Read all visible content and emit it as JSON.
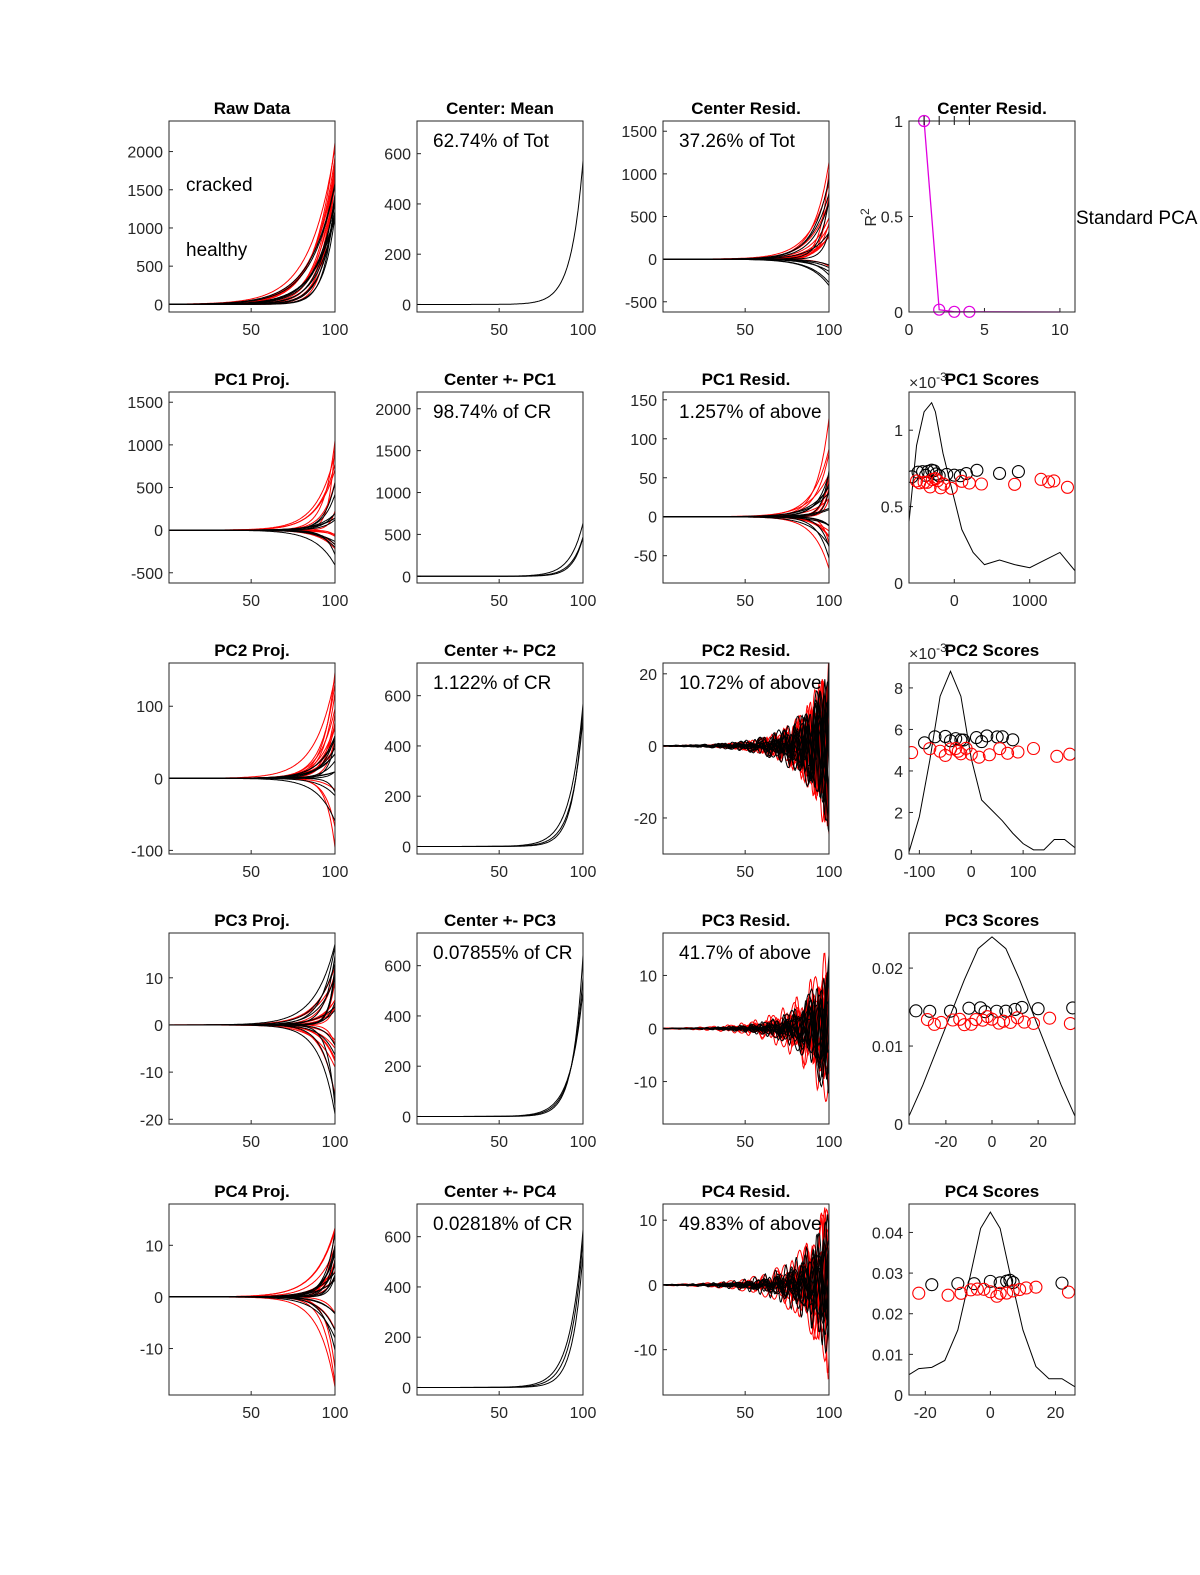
{
  "figure": {
    "side_label": "Standard PCA",
    "legend": [
      {
        "label": "cracked",
        "color": "#ff0000"
      },
      {
        "label": "healthy",
        "color": "#000000"
      }
    ]
  },
  "colors": {
    "cracked": "#ff0000",
    "healthy": "#000000",
    "r2_line": "#e000e0",
    "axis": "#262626"
  },
  "chart_data": [
    {
      "type": "line",
      "title": "Raw Data",
      "xlim": [
        1,
        100
      ],
      "ylim": [
        -100,
        2400
      ],
      "xticks": [
        50,
        100
      ],
      "yticks": [
        0,
        500,
        1000,
        1500,
        2000
      ],
      "series": [
        {
          "group": "cracked",
          "shape": "exp",
          "values": [
            0,
            2200
          ],
          "count": 12
        },
        {
          "group": "healthy",
          "shape": "exp",
          "values": [
            0,
            1600
          ],
          "count": 12
        }
      ]
    },
    {
      "type": "line",
      "title": "Center: Mean",
      "annotation": "62.74% of Tot",
      "xlim": [
        1,
        100
      ],
      "ylim": [
        -30,
        730
      ],
      "xticks": [
        50,
        100
      ],
      "yticks": [
        0,
        200,
        400,
        600
      ],
      "series": [
        {
          "group": "healthy",
          "shape": "exp",
          "values": [
            0,
            650
          ],
          "count": 1
        }
      ]
    },
    {
      "type": "line",
      "title": "Center Resid.",
      "annotation": "37.26% of Tot",
      "xlim": [
        1,
        100
      ],
      "ylim": [
        -620,
        1620
      ],
      "xticks": [
        50,
        100
      ],
      "yticks": [
        -500,
        0,
        500,
        1000,
        1500
      ],
      "series": [
        {
          "group": "cracked",
          "shape": "spread",
          "values": [
            -400,
            1500
          ],
          "count": 12
        },
        {
          "group": "healthy",
          "shape": "spread",
          "values": [
            -450,
            1000
          ],
          "count": 12
        }
      ]
    },
    {
      "type": "line",
      "title": "Center Resid.",
      "ylabel": "R2",
      "xlim": [
        0,
        11
      ],
      "ylim": [
        0,
        1
      ],
      "xticks": [
        0,
        5,
        10
      ],
      "yticks": [
        0,
        0.5,
        1
      ],
      "r2_x": [
        1,
        2,
        3,
        4
      ],
      "r2_y": [
        1.0,
        0.012,
        0.0011,
        0.0009
      ],
      "r2_end": [
        10,
        0.0
      ],
      "top_marks": [
        1,
        2,
        3,
        4
      ]
    },
    {
      "type": "line",
      "title": "PC1 Proj.",
      "xlim": [
        1,
        100
      ],
      "ylim": [
        -620,
        1620
      ],
      "xticks": [
        50,
        100
      ],
      "yticks": [
        -500,
        0,
        500,
        1000,
        1500
      ],
      "series": [
        {
          "group": "cracked",
          "shape": "spread",
          "values": [
            -300,
            1500
          ],
          "count": 12
        },
        {
          "group": "healthy",
          "shape": "spread",
          "values": [
            -550,
            600
          ],
          "count": 12
        }
      ]
    },
    {
      "type": "line",
      "title": "Center +- PC1",
      "annotation": "98.74% of CR",
      "xlim": [
        1,
        100
      ],
      "ylim": [
        -80,
        2200
      ],
      "xticks": [
        50,
        100
      ],
      "yticks": [
        0,
        500,
        1000,
        1500,
        2000
      ],
      "series": [
        {
          "group": "healthy",
          "shape": "exp",
          "values": [
            0,
            650
          ],
          "count": 3
        }
      ]
    },
    {
      "type": "line",
      "title": "PC1 Resid.",
      "annotation": "1.257% of above",
      "xlim": [
        1,
        100
      ],
      "ylim": [
        -85,
        160
      ],
      "xticks": [
        50,
        100
      ],
      "yticks": [
        -50,
        0,
        50,
        100,
        150
      ],
      "series": [
        {
          "group": "cracked",
          "shape": "spread",
          "values": [
            -80,
            150
          ],
          "count": 14
        },
        {
          "group": "healthy",
          "shape": "spread",
          "values": [
            -60,
            60
          ],
          "count": 14
        }
      ]
    },
    {
      "type": "scatter",
      "title": "PC1 Scores",
      "multiplier": "×10^-3",
      "xlim": [
        -600,
        1600
      ],
      "ylim": [
        0,
        1.25
      ],
      "xticks": [
        0,
        1000
      ],
      "yticks": [
        0,
        0.5,
        1
      ],
      "healthy_x": [
        -560,
        -480,
        -420,
        -380,
        -350,
        -300,
        -270,
        -240,
        -200,
        -100,
        0,
        80,
        160,
        300,
        600,
        850
      ],
      "cracked_x": [
        -500,
        -460,
        -400,
        -360,
        -320,
        -290,
        -250,
        -220,
        -180,
        -140,
        -40,
        100,
        200,
        360,
        800,
        1150,
        1250,
        1320,
        1500
      ],
      "healthy_y": 0.72,
      "cracked_y": 0.65,
      "density_x": [
        -600,
        -500,
        -400,
        -300,
        -250,
        -150,
        0,
        100,
        250,
        400,
        600,
        800,
        1000,
        1200,
        1400,
        1600
      ],
      "density_y": [
        0.4,
        0.9,
        1.12,
        1.18,
        1.12,
        0.85,
        0.55,
        0.35,
        0.2,
        0.12,
        0.15,
        0.12,
        0.1,
        0.15,
        0.2,
        0.08
      ]
    },
    {
      "type": "line",
      "title": "PC2 Proj.",
      "xlim": [
        1,
        100
      ],
      "ylim": [
        -105,
        160
      ],
      "xticks": [
        50,
        100
      ],
      "yticks": [
        -100,
        0,
        100
      ],
      "series": [
        {
          "group": "cracked",
          "shape": "spread",
          "values": [
            -100,
            150
          ],
          "count": 14
        },
        {
          "group": "healthy",
          "shape": "spread",
          "values": [
            -60,
            60
          ],
          "count": 14
        }
      ]
    },
    {
      "type": "line",
      "title": "Center +- PC2",
      "annotation": "1.122% of CR",
      "xlim": [
        1,
        100
      ],
      "ylim": [
        -30,
        730
      ],
      "xticks": [
        50,
        100
      ],
      "yticks": [
        0,
        200,
        400,
        600
      ],
      "series": [
        {
          "group": "healthy",
          "shape": "exp",
          "values": [
            0,
            650
          ],
          "count": 3
        }
      ]
    },
    {
      "type": "line",
      "title": "PC2 Resid.",
      "annotation": "10.72% of above",
      "xlim": [
        1,
        100
      ],
      "ylim": [
        -30,
        23
      ],
      "xticks": [
        50,
        100
      ],
      "yticks": [
        -20,
        0,
        20
      ],
      "series": [
        {
          "group": "cracked",
          "shape": "noisy",
          "values": [
            -28,
            22
          ],
          "count": 16
        },
        {
          "group": "healthy",
          "shape": "noisy",
          "values": [
            -25,
            18
          ],
          "count": 16
        }
      ]
    },
    {
      "type": "scatter",
      "title": "PC2 Scores",
      "multiplier": "×10^-3",
      "xlim": [
        -120,
        200
      ],
      "ylim": [
        0,
        9.2
      ],
      "xticks": [
        -100,
        0,
        100
      ],
      "yticks": [
        0,
        2,
        4,
        6,
        8
      ],
      "healthy_x": [
        -90,
        -70,
        -50,
        -40,
        -30,
        -20,
        -15,
        10,
        20,
        30,
        50,
        60,
        80
      ],
      "cracked_x": [
        -115,
        -80,
        -60,
        -50,
        -40,
        -30,
        -25,
        -20,
        -10,
        0,
        15,
        35,
        55,
        70,
        90,
        120,
        165,
        190
      ],
      "healthy_y": 5.5,
      "cracked_y": 4.9,
      "density_x": [
        -120,
        -100,
        -80,
        -60,
        -40,
        -20,
        0,
        20,
        40,
        60,
        80,
        100,
        120,
        140,
        160,
        180,
        200
      ],
      "density_y": [
        0.1,
        1.8,
        4.5,
        7.6,
        8.8,
        7.6,
        4.6,
        2.6,
        2.1,
        1.6,
        1.0,
        0.5,
        0.2,
        0.2,
        0.7,
        0.7,
        0.3
      ]
    },
    {
      "type": "line",
      "title": "PC3 Proj.",
      "xlim": [
        1,
        100
      ],
      "ylim": [
        -21,
        19.5
      ],
      "xticks": [
        50,
        100
      ],
      "yticks": [
        -20,
        -10,
        0,
        10
      ],
      "series": [
        {
          "group": "cracked",
          "shape": "spread",
          "values": [
            -19,
            16
          ],
          "count": 16
        },
        {
          "group": "healthy",
          "shape": "spread",
          "values": [
            -20,
            18
          ],
          "count": 16
        }
      ]
    },
    {
      "type": "line",
      "title": "Center +- PC3",
      "annotation": "0.07855% of CR",
      "xlim": [
        1,
        100
      ],
      "ylim": [
        -30,
        730
      ],
      "xticks": [
        50,
        100
      ],
      "yticks": [
        0,
        200,
        400,
        600
      ],
      "series": [
        {
          "group": "healthy",
          "shape": "exp",
          "values": [
            0,
            650
          ],
          "count": 3
        }
      ]
    },
    {
      "type": "line",
      "title": "PC3 Resid.",
      "annotation": "41.7% of above",
      "xlim": [
        1,
        100
      ],
      "ylim": [
        -18,
        18
      ],
      "xticks": [
        50,
        100
      ],
      "yticks": [
        -10,
        0,
        10
      ],
      "series": [
        {
          "group": "cracked",
          "shape": "noisy",
          "values": [
            -16,
            17
          ],
          "count": 16
        },
        {
          "group": "healthy",
          "shape": "noisy",
          "values": [
            -13,
            15
          ],
          "count": 16
        }
      ]
    },
    {
      "type": "scatter",
      "title": "PC3 Scores",
      "xlim": [
        -36,
        36
      ],
      "ylim": [
        0,
        0.0245
      ],
      "xticks": [
        -20,
        0,
        20
      ],
      "yticks": [
        0,
        0.01,
        0.02
      ],
      "healthy_x": [
        -33,
        -27,
        -18,
        -10,
        -5,
        -3,
        2,
        6,
        10,
        13,
        20,
        35
      ],
      "cracked_x": [
        -28,
        -25,
        -22,
        -17,
        -14,
        -12,
        -9,
        -7,
        -4,
        -2,
        0,
        3,
        5,
        8,
        11,
        14,
        18,
        25,
        34
      ],
      "healthy_y": 0.0148,
      "cracked_y": 0.0133,
      "density_x": [
        -36,
        -30,
        -24,
        -18,
        -12,
        -6,
        0,
        6,
        12,
        18,
        24,
        30,
        36
      ],
      "density_y": [
        0.001,
        0.005,
        0.0095,
        0.014,
        0.0185,
        0.0225,
        0.024,
        0.0225,
        0.0185,
        0.014,
        0.0095,
        0.005,
        0.001
      ]
    },
    {
      "type": "line",
      "title": "PC4 Proj.",
      "xlim": [
        1,
        100
      ],
      "ylim": [
        -19,
        18
      ],
      "xticks": [
        50,
        100
      ],
      "yticks": [
        -10,
        0,
        10
      ],
      "series": [
        {
          "group": "cracked",
          "shape": "spread",
          "values": [
            -18,
            16
          ],
          "count": 16
        },
        {
          "group": "healthy",
          "shape": "spread",
          "values": [
            -16,
            14
          ],
          "count": 16
        }
      ]
    },
    {
      "type": "line",
      "title": "Center +- PC4",
      "annotation": "0.02818% of CR",
      "xlim": [
        1,
        100
      ],
      "ylim": [
        -30,
        730
      ],
      "xticks": [
        50,
        100
      ],
      "yticks": [
        0,
        200,
        400,
        600
      ],
      "series": [
        {
          "group": "healthy",
          "shape": "exp",
          "values": [
            0,
            650
          ],
          "count": 3
        }
      ]
    },
    {
      "type": "line",
      "title": "PC4 Resid.",
      "annotation": "49.83% of above",
      "xlim": [
        1,
        100
      ],
      "ylim": [
        -17,
        12.5
      ],
      "xticks": [
        50,
        100
      ],
      "yticks": [
        -10,
        0,
        10
      ],
      "series": [
        {
          "group": "cracked",
          "shape": "noisy",
          "values": [
            -16,
            12
          ],
          "count": 16
        },
        {
          "group": "healthy",
          "shape": "noisy",
          "values": [
            -12,
            11
          ],
          "count": 16
        }
      ]
    },
    {
      "type": "scatter",
      "title": "PC4 Scores",
      "xlim": [
        -25,
        26
      ],
      "ylim": [
        0,
        0.047
      ],
      "xticks": [
        -20,
        0,
        20
      ],
      "yticks": [
        0,
        0.01,
        0.02,
        0.03,
        0.04
      ],
      "healthy_x": [
        -18,
        -10,
        -5,
        0,
        3,
        5,
        6,
        7,
        22
      ],
      "cracked_x": [
        -22,
        -13,
        -9,
        -6,
        -4,
        -2,
        0,
        2,
        3,
        5,
        7,
        9,
        11,
        14,
        24
      ],
      "healthy_y": 0.0275,
      "cracked_y": 0.0255,
      "density_x": [
        -25,
        -22,
        -18,
        -14,
        -10,
        -6,
        -3,
        0,
        3,
        6,
        10,
        14,
        18,
        22,
        26
      ],
      "density_y": [
        0.005,
        0.0065,
        0.0068,
        0.0085,
        0.016,
        0.03,
        0.041,
        0.045,
        0.041,
        0.03,
        0.016,
        0.007,
        0.004,
        0.004,
        0.002
      ]
    }
  ]
}
